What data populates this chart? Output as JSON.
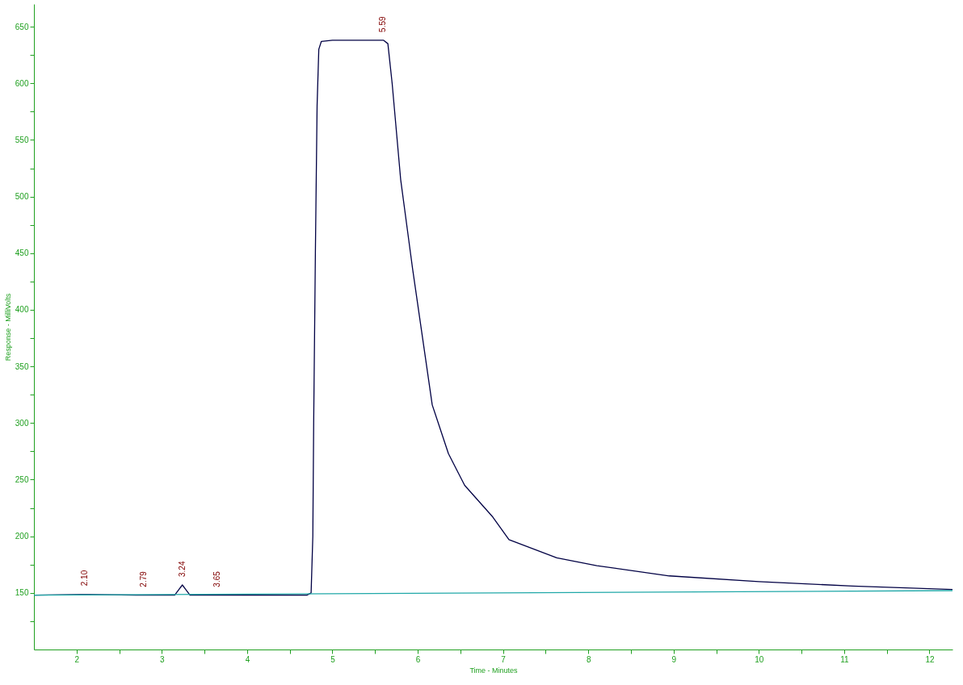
{
  "chart_data": {
    "type": "line",
    "xlabel": "Time - Minutes",
    "ylabel": "Response - MilliVolts",
    "xlim": [
      1.5,
      12.27
    ],
    "ylim": [
      100,
      670
    ],
    "xticks": [
      2,
      {
        "value": 2.5,
        "label": null
      },
      3,
      {
        "value": 3.5,
        "label": null
      },
      4,
      {
        "value": 4.5,
        "label": null
      },
      5,
      {
        "value": 5.5,
        "label": null
      },
      6,
      {
        "value": 6.5,
        "label": null
      },
      7,
      {
        "value": 7.5,
        "label": null
      },
      8,
      {
        "value": 8.5,
        "label": null
      },
      9,
      {
        "value": 9.5,
        "label": null
      },
      10,
      {
        "value": 10.5,
        "label": null
      },
      11,
      {
        "value": 11.5,
        "label": null
      },
      12
    ],
    "yticks": [
      {
        "value": 125,
        "label": null
      },
      150,
      {
        "value": 175,
        "label": null
      },
      200,
      {
        "value": 225,
        "label": null
      },
      250,
      {
        "value": 275,
        "label": null
      },
      300,
      {
        "value": 325,
        "label": null
      },
      350,
      {
        "value": 375,
        "label": null
      },
      400,
      {
        "value": 425,
        "label": null
      },
      450,
      {
        "value": 475,
        "label": null
      },
      500,
      {
        "value": 525,
        "label": null
      },
      550,
      {
        "value": 575,
        "label": null
      },
      600,
      {
        "value": 625,
        "label": null
      },
      650
    ],
    "grid": false,
    "legend": false,
    "marker": "none",
    "line_style": "solid",
    "series": [
      {
        "color": "#000044",
        "x": [
          1.5,
          2.05,
          2.1,
          2.15,
          2.7,
          3.15,
          3.2,
          3.24,
          3.28,
          3.33,
          4.7,
          4.75,
          4.77,
          4.78,
          4.8,
          4.82,
          4.84,
          4.87,
          5.0,
          5.6,
          5.65,
          5.7,
          5.8,
          5.94,
          6.17,
          6.36,
          6.55,
          6.88,
          7.07,
          7.63,
          8.1,
          8.95,
          10.0,
          11.1,
          12.27
        ],
        "values": [
          148,
          148.5,
          148.5,
          148.5,
          148,
          148,
          153,
          157,
          153,
          148,
          148,
          150,
          200,
          300,
          450,
          580,
          630,
          637,
          638,
          638,
          635,
          600,
          515,
          436,
          316,
          273,
          245,
          217,
          197,
          181,
          174,
          165,
          160,
          156,
          153
        ]
      },
      {
        "color": "#20a8a8",
        "x": [
          1.5,
          12.27
        ],
        "values": [
          148,
          152
        ]
      }
    ],
    "annotations": [
      {
        "text": "2.10",
        "x": 2.1,
        "y": 149
      },
      {
        "text": "2.79",
        "x": 2.79,
        "y": 148
      },
      {
        "text": "3.24",
        "x": 3.24,
        "y": 157
      },
      {
        "text": "3.65",
        "x": 3.65,
        "y": 148
      },
      {
        "text": "5.59",
        "x": 5.59,
        "y": 638
      }
    ]
  }
}
